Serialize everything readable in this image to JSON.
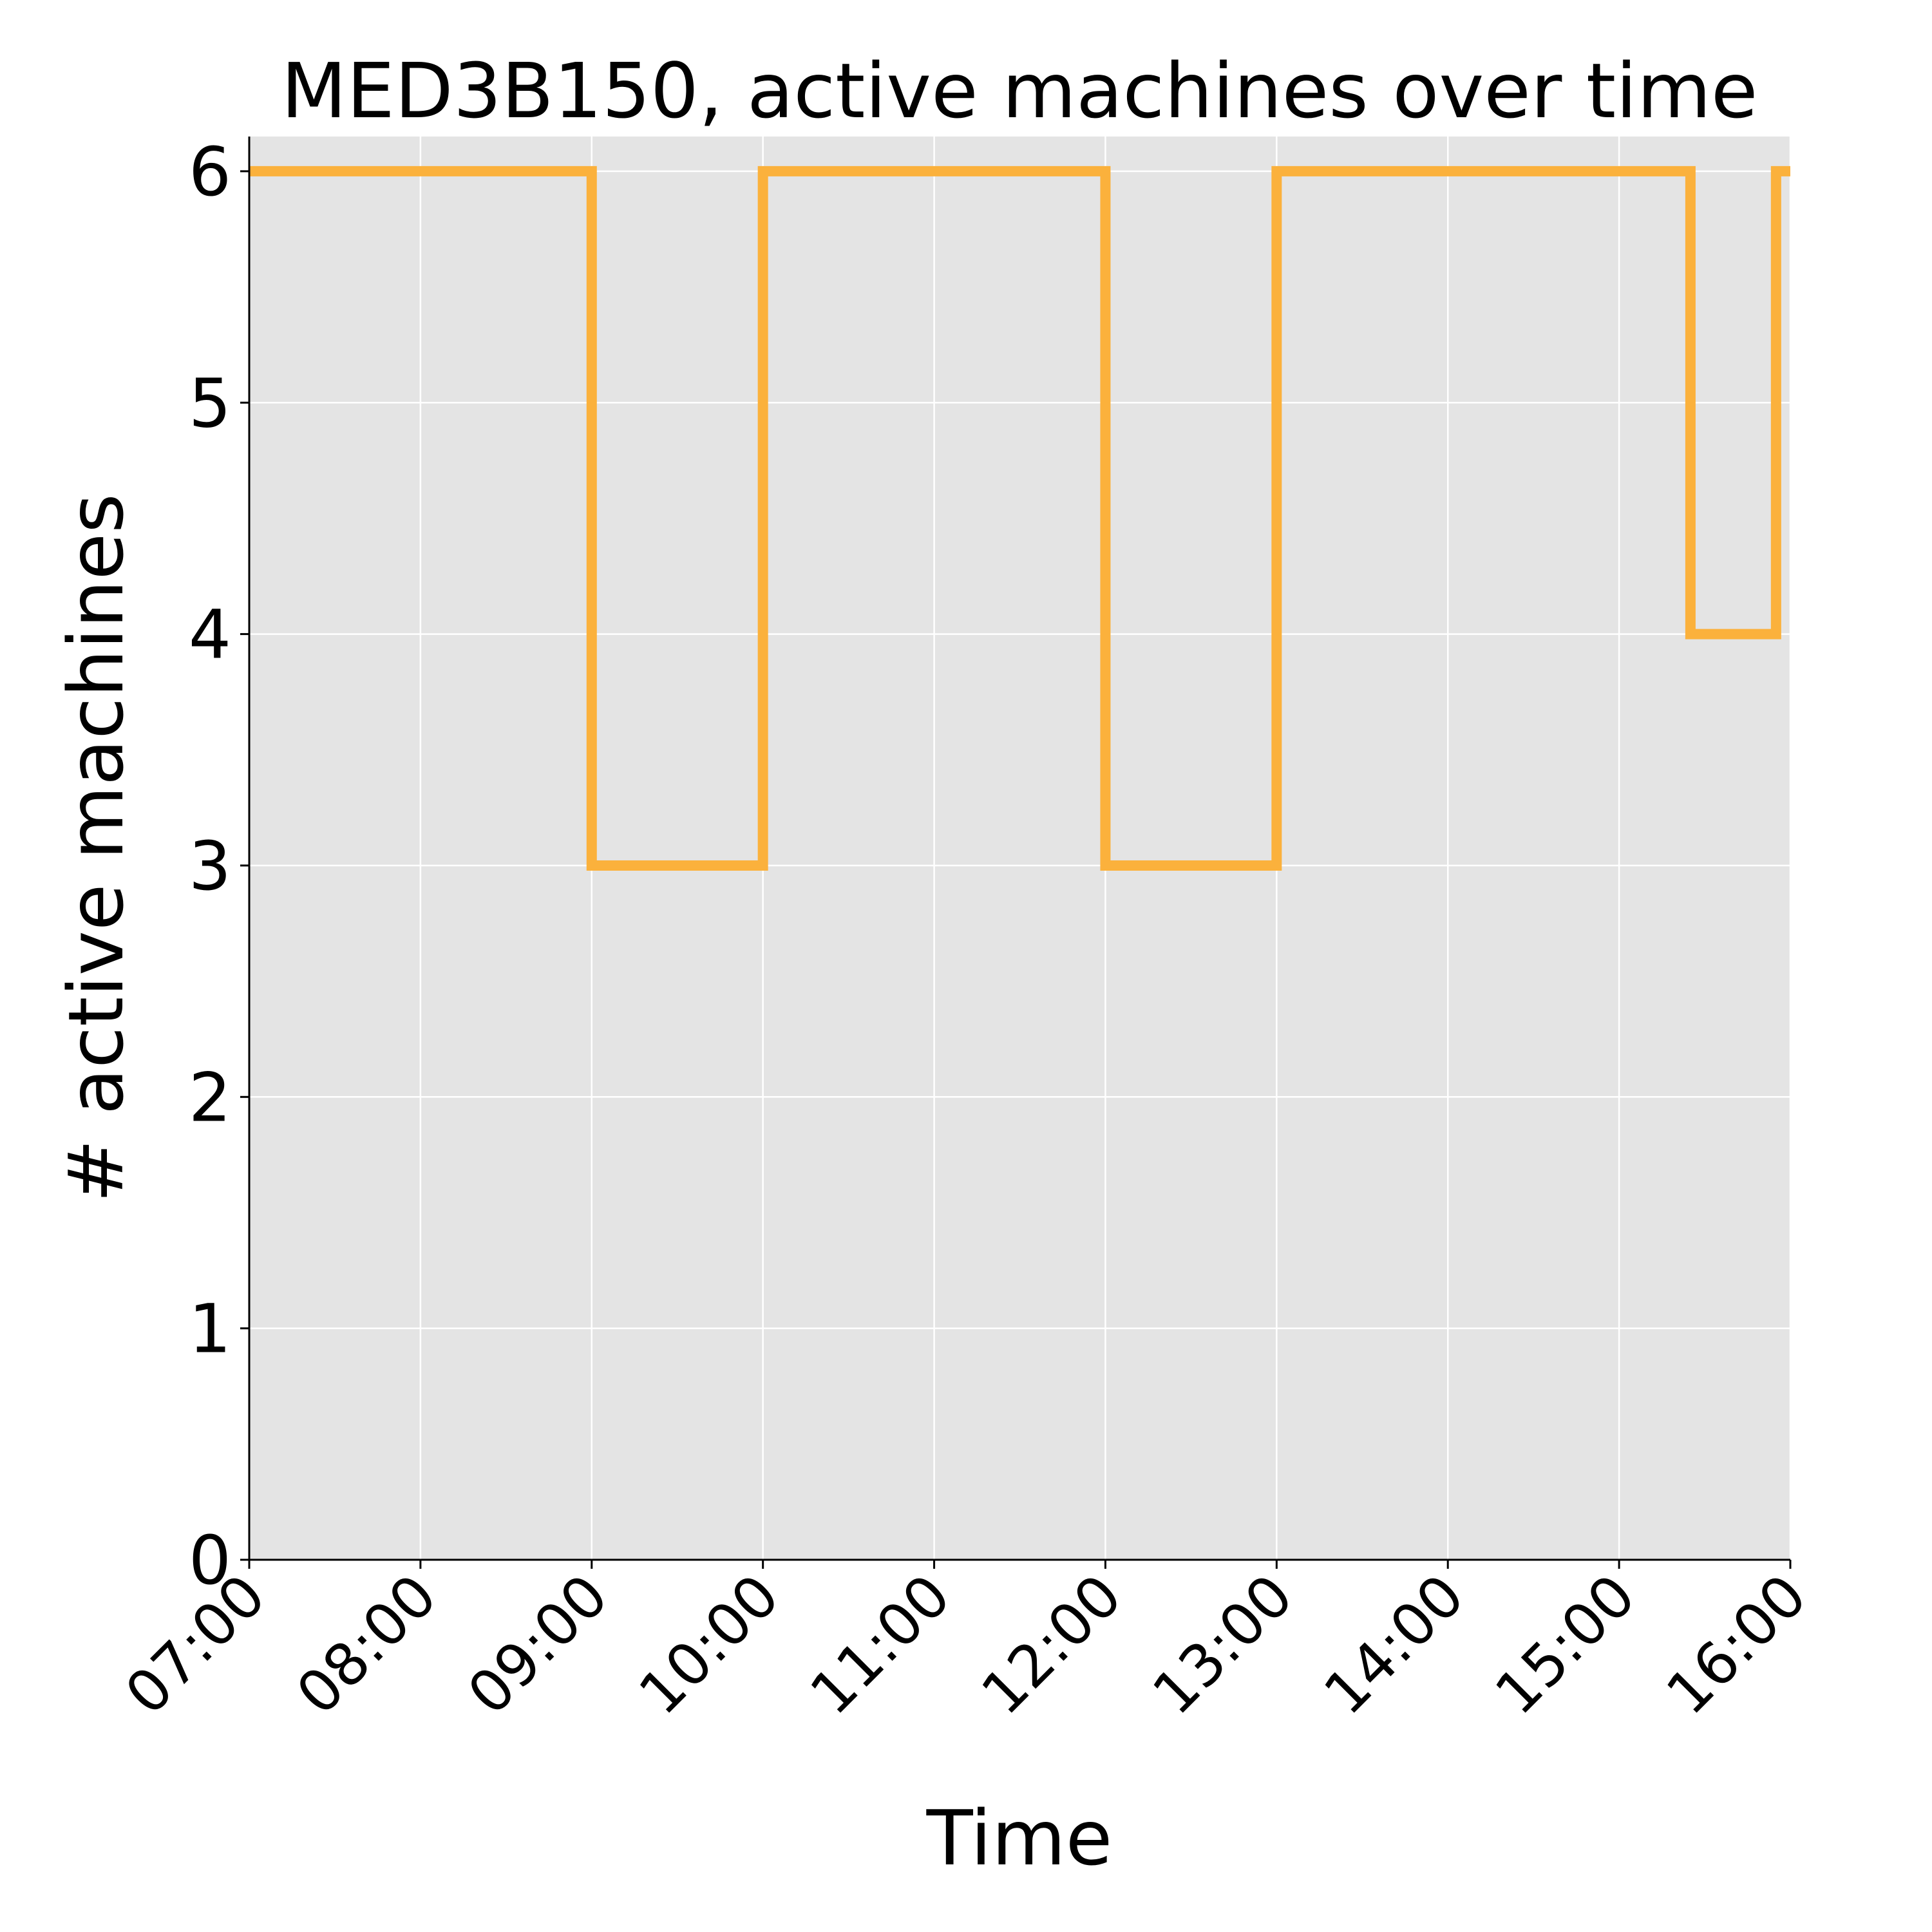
{
  "chart_data": {
    "type": "line",
    "title": "MED3B150, active machines over time",
    "xlabel": "Time",
    "ylabel": "# active machines",
    "xlim": [
      "07:00",
      "16:00"
    ],
    "ylim": [
      0,
      6.15
    ],
    "x_ticks": [
      "07:00",
      "08:00",
      "09:00",
      "10:00",
      "11:00",
      "12:00",
      "13:00",
      "14:00",
      "15:00",
      "16:00"
    ],
    "y_ticks": [
      0,
      1,
      2,
      3,
      4,
      5,
      6
    ],
    "grid": true,
    "step": true,
    "series": [
      {
        "color": "#fbb13c",
        "x": [
          "07:00",
          "09:00",
          "10:00",
          "12:00",
          "13:00",
          "15:25",
          "15:55",
          "16:00"
        ],
        "y": [
          6,
          3,
          6,
          3,
          6,
          4,
          6,
          6
        ]
      }
    ],
    "colors": {
      "background": "#e4e4e4",
      "grid": "#ffffff",
      "line": "#fbb13c"
    }
  }
}
